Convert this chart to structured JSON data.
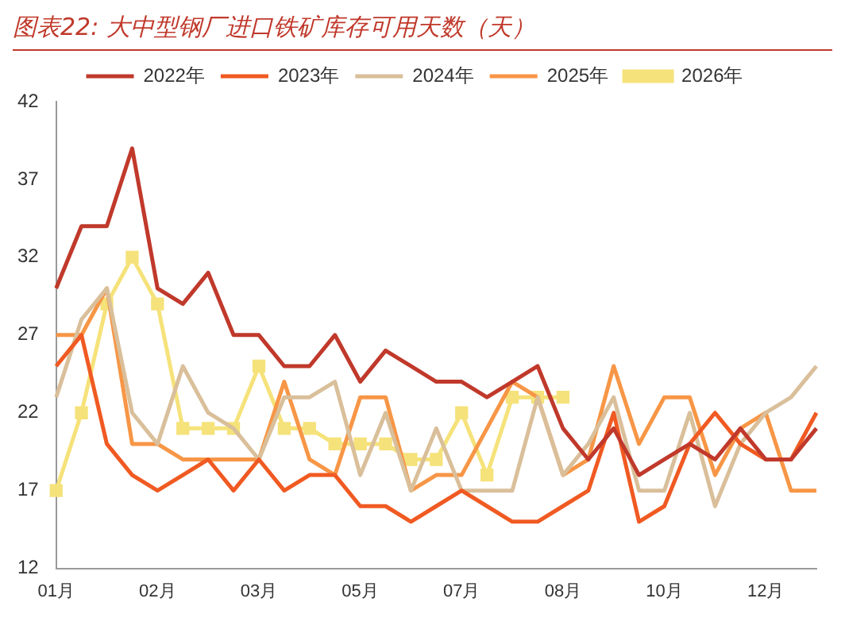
{
  "chart_data": {
    "type": "line",
    "title": "图表22: 大中型钢厂进口铁矿库存可用天数（天）",
    "categories": [
      "01月",
      null,
      null,
      null,
      "02月",
      null,
      null,
      null,
      "03月",
      null,
      null,
      null,
      "05月",
      null,
      null,
      null,
      "07月",
      null,
      null,
      null,
      "08月",
      null,
      null,
      null,
      "10月",
      null,
      null,
      null,
      "12月",
      null,
      null
    ],
    "series": [
      {
        "name": "2022年",
        "color": "#c0392b",
        "marker": "none",
        "values": [
          30,
          34,
          34,
          39,
          30,
          29,
          31,
          27,
          27,
          25,
          25,
          27,
          24,
          26,
          25,
          24,
          24,
          23,
          24,
          25,
          21,
          19,
          21,
          18,
          19,
          20,
          19,
          21,
          19,
          19,
          21
        ]
      },
      {
        "name": "2023年",
        "color": "#f05a22",
        "marker": "none",
        "values": [
          25,
          27,
          20,
          18,
          17,
          18,
          19,
          17,
          19,
          17,
          18,
          18,
          16,
          16,
          15,
          16,
          17,
          16,
          15,
          15,
          16,
          17,
          22,
          15,
          16,
          20,
          22,
          20,
          19,
          19,
          22
        ]
      },
      {
        "name": "2024年",
        "color": "#d9bf9a",
        "marker": "none",
        "values": [
          23,
          28,
          30,
          22,
          20,
          25,
          22,
          21,
          19,
          23,
          23,
          24,
          18,
          22,
          17,
          21,
          17,
          17,
          17,
          23,
          18,
          20,
          23,
          17,
          17,
          22,
          16,
          20,
          22,
          23,
          25
        ]
      },
      {
        "name": "2025年",
        "color": "#f79646",
        "marker": "none",
        "values": [
          27,
          27,
          30,
          20,
          20,
          19,
          19,
          19,
          19,
          24,
          19,
          18,
          23,
          23,
          17,
          18,
          18,
          21,
          24,
          23,
          18,
          19,
          25,
          20,
          23,
          23,
          18,
          21,
          22,
          17,
          17
        ]
      },
      {
        "name": "2026年",
        "color": "#f5e27a",
        "marker": "square",
        "values": [
          17,
          22,
          29,
          32,
          29,
          21,
          21,
          21,
          25,
          21,
          21,
          20,
          20,
          20,
          19,
          19,
          22,
          18,
          23,
          23,
          23,
          null,
          null,
          null,
          null,
          null,
          null,
          null,
          null,
          null,
          null
        ]
      }
    ],
    "ylim": [
      12,
      42
    ],
    "yticks": [
      12,
      17,
      22,
      27,
      32,
      37,
      42
    ],
    "grid": false,
    "legend": "top"
  }
}
